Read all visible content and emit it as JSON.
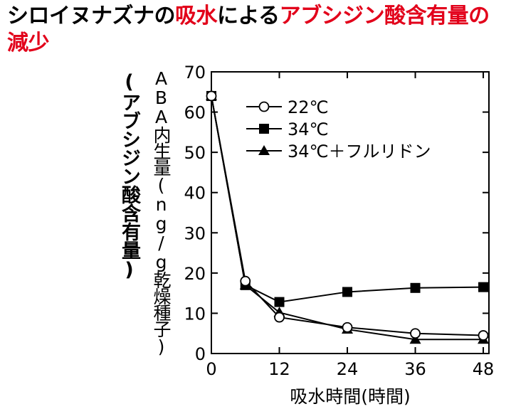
{
  "title": {
    "segments": [
      {
        "text": "シロイヌナズナの",
        "highlight": false
      },
      {
        "text": "吸水",
        "highlight": true
      },
      {
        "text": "による",
        "highlight": false
      },
      {
        "text": "アブシジン酸含有量の減少",
        "highlight": true
      }
    ],
    "highlight_color": "#e2001a"
  },
  "chart_data": {
    "type": "line",
    "x": [
      0,
      6,
      12,
      24,
      36,
      48
    ],
    "xticks": [
      0,
      12,
      24,
      36,
      48
    ],
    "yticks": [
      0,
      10,
      20,
      30,
      40,
      50,
      60,
      70
    ],
    "xlim": [
      0,
      49
    ],
    "ylim": [
      0,
      70
    ],
    "xlabel": "吸水時間(時間)",
    "ylabel": "ABA内生量(ng/g乾燥種子)",
    "ylabel_alt": "(アブシジン酸含有量)",
    "legend_position": "top-left inside",
    "grid": false,
    "series": [
      {
        "name": "22℃",
        "marker": "circle-open",
        "values": [
          64,
          18,
          9,
          6.5,
          5,
          4.5
        ]
      },
      {
        "name": "34℃",
        "marker": "square-filled",
        "values": [
          64,
          17,
          12.8,
          15.3,
          16.3,
          16.5
        ]
      },
      {
        "name": "34℃＋フルリドン",
        "marker": "triangle-filled",
        "values": [
          64,
          17,
          10.2,
          6,
          3.5,
          3.5
        ]
      }
    ]
  }
}
